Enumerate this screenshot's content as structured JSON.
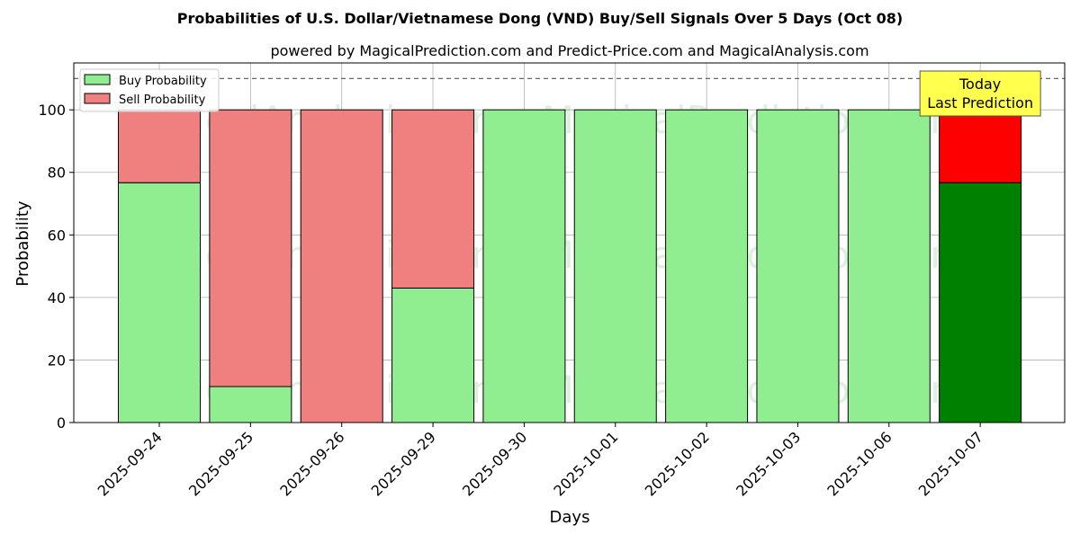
{
  "chart_data": {
    "type": "bar",
    "stacked": true,
    "title": "Probabilities of U.S. Dollar/Vietnamese Dong (VND) Buy/Sell Signals Over 5 Days (Oct 08)",
    "subtitle": "powered by MagicalPrediction.com and Predict-Price.com and MagicalAnalysis.com",
    "xlabel": "Days",
    "ylabel": "Probability",
    "ylim": [
      0,
      115
    ],
    "yticks": [
      0,
      20,
      40,
      60,
      80,
      100
    ],
    "grid": true,
    "legend_position": "top-left",
    "reference_line": {
      "y": 110,
      "style": "dashed"
    },
    "categories": [
      "2025-09-24",
      "2025-09-25",
      "2025-09-26",
      "2025-09-29",
      "2025-09-30",
      "2025-10-01",
      "2025-10-02",
      "2025-10-03",
      "2025-10-06",
      "2025-10-07"
    ],
    "series": [
      {
        "name": "Buy Probability",
        "values": [
          76.7,
          11.5,
          0,
          43.0,
          100,
          100,
          100,
          100,
          100,
          76.7
        ]
      },
      {
        "name": "Sell Probability",
        "values": [
          23.3,
          88.5,
          100,
          57.0,
          0,
          0,
          0,
          0,
          0,
          23.3
        ]
      }
    ],
    "highlight_index": 9,
    "annotation": {
      "line1": "Today",
      "line2": "Last Prediction"
    },
    "watermarks": [
      "MagicalAnalysis.com",
      "MagicalPrediction.com"
    ]
  },
  "colors": {
    "buy": "#90ee90",
    "sell": "#f08080",
    "buy_highlight": "#008000",
    "sell_highlight": "#ff0000",
    "annotation_bg": "#ffff4d",
    "grid": "#b0b0b0"
  }
}
